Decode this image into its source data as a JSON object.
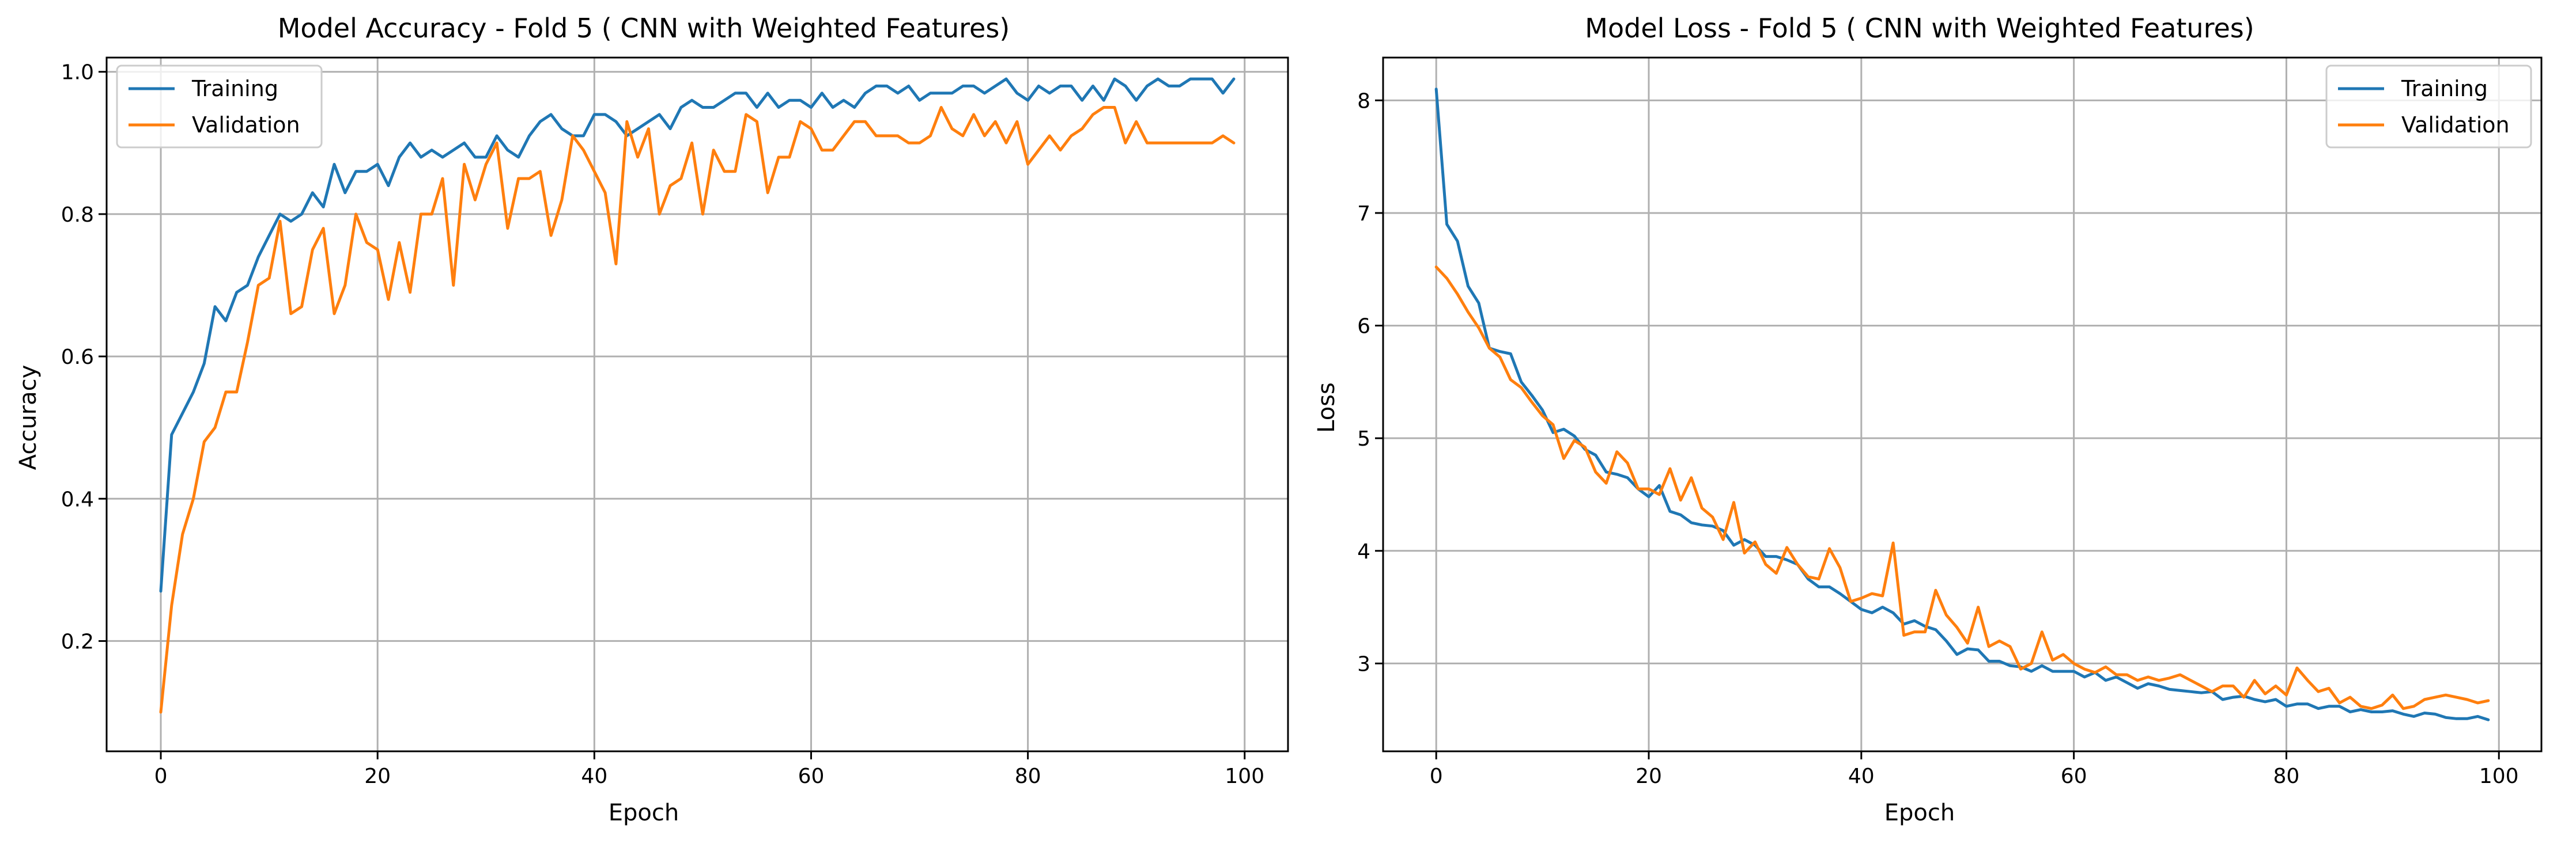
{
  "colors": {
    "training": "#1f77b4",
    "validation": "#ff7f0e"
  },
  "chart_data": [
    {
      "type": "line",
      "title": "Model Accuracy - Fold 5 ( CNN with Weighted Features)",
      "xlabel": "Epoch",
      "ylabel": "Accuracy",
      "xlim": [
        -5,
        104
      ],
      "ylim": [
        0.045,
        1.02
      ],
      "xticks": [
        0,
        20,
        40,
        60,
        80,
        100
      ],
      "yticks": [
        0.2,
        0.4,
        0.6,
        0.8,
        1.0
      ],
      "ytick_labels": [
        "0.2",
        "0.4",
        "0.6",
        "0.8",
        "1.0"
      ],
      "grid": true,
      "legend": "upper-left",
      "series": [
        {
          "name": "Training",
          "values": [
            0.27,
            0.49,
            0.52,
            0.55,
            0.59,
            0.67,
            0.65,
            0.69,
            0.7,
            0.74,
            0.77,
            0.8,
            0.79,
            0.8,
            0.83,
            0.81,
            0.87,
            0.83,
            0.86,
            0.86,
            0.87,
            0.84,
            0.88,
            0.9,
            0.88,
            0.89,
            0.88,
            0.89,
            0.9,
            0.88,
            0.88,
            0.91,
            0.89,
            0.88,
            0.91,
            0.93,
            0.94,
            0.92,
            0.91,
            0.91,
            0.94,
            0.94,
            0.93,
            0.91,
            0.92,
            0.93,
            0.94,
            0.92,
            0.95,
            0.96,
            0.95,
            0.95,
            0.96,
            0.97,
            0.97,
            0.95,
            0.97,
            0.95,
            0.96,
            0.96,
            0.95,
            0.97,
            0.95,
            0.96,
            0.95,
            0.97,
            0.98,
            0.98,
            0.97,
            0.98,
            0.96,
            0.97,
            0.97,
            0.97,
            0.98,
            0.98,
            0.97,
            0.98,
            0.99,
            0.97,
            0.96,
            0.98,
            0.97,
            0.98,
            0.98,
            0.96,
            0.98,
            0.96,
            0.99,
            0.98,
            0.96,
            0.98,
            0.99,
            0.98,
            0.98,
            0.99,
            0.99,
            0.99,
            0.97,
            0.99
          ]
        },
        {
          "name": "Validation",
          "values": [
            0.1,
            0.25,
            0.35,
            0.4,
            0.48,
            0.5,
            0.55,
            0.55,
            0.62,
            0.7,
            0.71,
            0.79,
            0.66,
            0.67,
            0.75,
            0.78,
            0.66,
            0.7,
            0.8,
            0.76,
            0.75,
            0.68,
            0.76,
            0.69,
            0.8,
            0.8,
            0.85,
            0.7,
            0.87,
            0.82,
            0.87,
            0.9,
            0.78,
            0.85,
            0.85,
            0.86,
            0.77,
            0.82,
            0.91,
            0.89,
            0.86,
            0.83,
            0.73,
            0.93,
            0.88,
            0.92,
            0.8,
            0.84,
            0.85,
            0.9,
            0.8,
            0.89,
            0.86,
            0.86,
            0.94,
            0.93,
            0.83,
            0.88,
            0.88,
            0.93,
            0.92,
            0.89,
            0.89,
            0.91,
            0.93,
            0.93,
            0.91,
            0.91,
            0.91,
            0.9,
            0.9,
            0.91,
            0.95,
            0.92,
            0.91,
            0.94,
            0.91,
            0.93,
            0.9,
            0.93,
            0.87,
            0.89,
            0.91,
            0.89,
            0.91,
            0.92,
            0.94,
            0.95,
            0.95,
            0.9,
            0.93,
            0.9,
            0.9,
            0.9,
            0.9,
            0.9,
            0.9,
            0.9,
            0.91,
            0.9
          ]
        }
      ]
    },
    {
      "type": "line",
      "title": "Model Loss - Fold 5 ( CNN with Weighted Features)",
      "xlabel": "Epoch",
      "ylabel": "Loss",
      "xlim": [
        -5,
        104
      ],
      "ylim": [
        2.22,
        8.38
      ],
      "xticks": [
        0,
        20,
        40,
        60,
        80,
        100
      ],
      "yticks": [
        3,
        4,
        5,
        6,
        7,
        8
      ],
      "ytick_labels": [
        "3",
        "4",
        "5",
        "6",
        "7",
        "8"
      ],
      "grid": true,
      "legend": "upper-right",
      "series": [
        {
          "name": "Training",
          "values": [
            8.1,
            6.9,
            6.75,
            6.35,
            6.2,
            5.8,
            5.77,
            5.75,
            5.5,
            5.38,
            5.25,
            5.05,
            5.08,
            5.02,
            4.9,
            4.85,
            4.7,
            4.68,
            4.65,
            4.55,
            4.48,
            4.58,
            4.35,
            4.32,
            4.25,
            4.23,
            4.22,
            4.18,
            4.05,
            4.1,
            4.05,
            3.95,
            3.95,
            3.92,
            3.88,
            3.75,
            3.68,
            3.68,
            3.62,
            3.55,
            3.48,
            3.45,
            3.5,
            3.45,
            3.35,
            3.38,
            3.33,
            3.3,
            3.2,
            3.08,
            3.13,
            3.12,
            3.02,
            3.02,
            2.98,
            2.97,
            2.93,
            2.98,
            2.93,
            2.93,
            2.93,
            2.88,
            2.92,
            2.85,
            2.88,
            2.83,
            2.78,
            2.82,
            2.8,
            2.77,
            2.76,
            2.75,
            2.74,
            2.75,
            2.68,
            2.7,
            2.71,
            2.68,
            2.66,
            2.68,
            2.62,
            2.64,
            2.64,
            2.6,
            2.62,
            2.62,
            2.57,
            2.59,
            2.57,
            2.57,
            2.58,
            2.55,
            2.53,
            2.56,
            2.55,
            2.52,
            2.51,
            2.51,
            2.53,
            2.5
          ]
        },
        {
          "name": "Validation",
          "values": [
            6.52,
            6.42,
            6.28,
            6.12,
            5.98,
            5.8,
            5.72,
            5.52,
            5.45,
            5.32,
            5.2,
            5.12,
            4.82,
            4.98,
            4.92,
            4.7,
            4.6,
            4.88,
            4.78,
            4.55,
            4.55,
            4.5,
            4.73,
            4.45,
            4.65,
            4.38,
            4.3,
            4.1,
            4.43,
            3.98,
            4.08,
            3.88,
            3.8,
            4.03,
            3.88,
            3.77,
            3.75,
            4.02,
            3.85,
            3.55,
            3.58,
            3.62,
            3.6,
            4.07,
            3.25,
            3.28,
            3.28,
            3.65,
            3.43,
            3.32,
            3.18,
            3.5,
            3.15,
            3.2,
            3.15,
            2.95,
            3.0,
            3.28,
            3.03,
            3.08,
            3.0,
            2.95,
            2.92,
            2.97,
            2.9,
            2.9,
            2.85,
            2.88,
            2.85,
            2.87,
            2.9,
            2.85,
            2.8,
            2.75,
            2.8,
            2.8,
            2.7,
            2.85,
            2.73,
            2.8,
            2.72,
            2.96,
            2.85,
            2.75,
            2.78,
            2.65,
            2.7,
            2.62,
            2.6,
            2.63,
            2.72,
            2.6,
            2.62,
            2.68,
            2.7,
            2.72,
            2.7,
            2.68,
            2.65,
            2.67
          ]
        }
      ]
    }
  ]
}
